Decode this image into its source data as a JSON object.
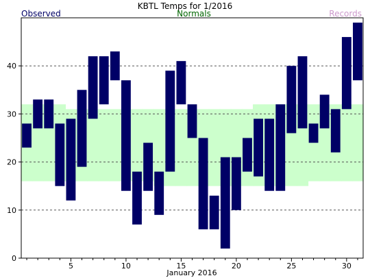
{
  "chart_data": {
    "type": "bar",
    "title": "KBTL Temps for 1/2016",
    "legend": {
      "observed": "Observed",
      "normals": "Normals",
      "records": "Records",
      "placement": "top"
    },
    "xlabel": "January 2016",
    "ylabel": "",
    "xlim": [
      0.5,
      31.5
    ],
    "ylim": [
      0,
      50
    ],
    "x_ticks": [
      5,
      10,
      15,
      20,
      25,
      30
    ],
    "y_ticks": [
      0,
      10,
      20,
      30,
      40
    ],
    "grid": "horizontal dashed",
    "days": [
      1,
      2,
      3,
      4,
      5,
      6,
      7,
      8,
      9,
      10,
      11,
      12,
      13,
      14,
      15,
      16,
      17,
      18,
      19,
      20,
      21,
      22,
      23,
      24,
      25,
      26,
      27,
      28,
      29,
      30,
      31
    ],
    "observed_high": [
      28,
      33,
      33,
      28,
      29,
      35,
      42,
      42,
      43,
      37,
      18,
      24,
      18,
      39,
      41,
      32,
      25,
      13,
      21,
      21,
      25,
      29,
      29,
      32,
      40,
      42,
      28,
      34,
      31,
      46,
      49
    ],
    "observed_low": [
      23,
      27,
      27,
      15,
      12,
      19,
      29,
      32,
      37,
      14,
      7,
      14,
      9,
      18,
      32,
      25,
      6,
      6,
      2,
      10,
      18,
      17,
      14,
      14,
      26,
      27,
      24,
      27,
      22,
      31,
      37
    ],
    "normal_high": [
      32,
      32,
      32,
      32,
      31,
      31,
      31,
      31,
      31,
      31,
      31,
      31,
      31,
      31,
      31,
      31,
      31,
      31,
      31,
      31,
      31,
      32,
      32,
      32,
      32,
      32,
      32,
      32,
      32,
      32,
      32
    ],
    "normal_low": [
      16,
      16,
      16,
      16,
      16,
      16,
      16,
      16,
      16,
      16,
      16,
      16,
      15,
      15,
      15,
      15,
      15,
      15,
      15,
      15,
      15,
      15,
      15,
      15,
      15,
      15,
      16,
      16,
      16,
      16,
      16
    ],
    "colors": {
      "observed": "#000066",
      "normals_fill": "#ccffcc",
      "normals_label": "#006600",
      "records_label": "#cc99cc",
      "grid": "#555555",
      "axis": "#000000"
    }
  }
}
